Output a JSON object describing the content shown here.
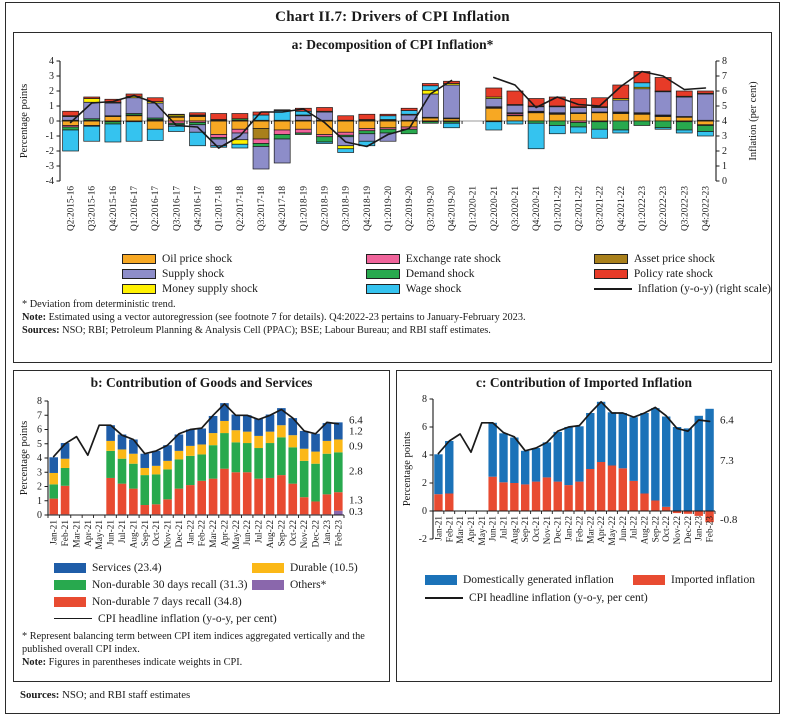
{
  "page": {
    "title": "Chart II.7: Drivers of CPI Inflation",
    "sources_label": "Sources:",
    "sources_text": " NSO; and RBI staff estimates"
  },
  "panel_a": {
    "title": "a: Decomposition of CPI Inflation*",
    "legend": [
      {
        "label": "Oil price shock",
        "color": "#F7A823"
      },
      {
        "label": "Supply shock",
        "color": "#8D8DC9"
      },
      {
        "label": "Money supply shock",
        "color": "#FFF101"
      },
      {
        "label": "Exchange rate shock",
        "color": "#F0649B"
      },
      {
        "label": "Demand shock",
        "color": "#28A94E"
      },
      {
        "label": "Wage shock",
        "color": "#35C3EF"
      },
      {
        "label": "Asset price shock",
        "color": "#A9801B"
      },
      {
        "label": "Policy rate shock",
        "color": "#E73B28"
      },
      {
        "label": "Inflation (y-o-y) (right scale)",
        "color": "#1a1a1a"
      }
    ],
    "footnotes": {
      "star": "* Deviation from deterministic trend.",
      "note_label": "Note:",
      "note_text": " Estimated using a vector autoregression (see footnote 7 for details). Q4:2022-23 pertains to January-February 2023.",
      "sources_label": "Sources:",
      "sources_text": " NSO; RBI; Petroleum Planning & Analysis Cell (PPAC); BSE; Labour Bureau; and RBI staff estimates."
    }
  },
  "panel_b": {
    "title": "b: Contribution of Goods and Services",
    "legend": [
      {
        "label": "Services (23.4)",
        "color": "#1F5DA8"
      },
      {
        "label": "Non-durable 30 days recall (31.3)",
        "color": "#28A94E"
      },
      {
        "label": "Non-durable 7 days recall (34.8)",
        "color": "#E84B31"
      },
      {
        "label": "Durable (10.5)",
        "color": "#FBB817"
      },
      {
        "label": "Others*",
        "color": "#8A67AC"
      },
      {
        "label": "CPI headline inflation (y-o-y, per cent)",
        "color": "#1a1a1a"
      }
    ],
    "footnotes": {
      "star": "* Represent balancing term between CPI item indices aggregated vertically and the published overall CPI index.",
      "note_label": "Note:",
      "note_text": " Figures in parentheses indicate weights in CPI."
    }
  },
  "panel_c": {
    "title": "c: Contribution of Imported Inflation",
    "legend": [
      {
        "label": "Domestically generated inflation",
        "color": "#1B72B8"
      },
      {
        "label": "Imported inflation",
        "color": "#E84B31"
      },
      {
        "label": "CPI headline inflation (y-o-y, per cent)",
        "color": "#1a1a1a"
      }
    ]
  },
  "chart_data": [
    {
      "id": "a",
      "type": "bar",
      "title": "a: Decomposition of CPI Inflation*",
      "ylabel": "Percentage points",
      "ylabel_right": "Inflation (per cent)",
      "ylim": [
        -4,
        4
      ],
      "yticks": [
        -4,
        -3,
        -2,
        -1,
        0,
        1,
        2,
        3,
        4
      ],
      "right_ylim": [
        0,
        8
      ],
      "right_yticks": [
        0,
        1,
        2,
        3,
        4,
        5,
        6,
        7,
        8
      ],
      "legend_position": "bottom",
      "grid": false,
      "categories": [
        "Q2:2015-16",
        "Q3:2015-16",
        "Q4:2015-16",
        "Q1:2016-17",
        "Q2:2016-17",
        "Q3:2016-17",
        "Q4:2016-17",
        "Q1:2017-18",
        "Q2:2017-18",
        "Q3:2017-18",
        "Q4:2017-18",
        "Q1:2018-19",
        "Q2:2018-19",
        "Q3:2018-19",
        "Q4:2018-19",
        "Q1:2019-20",
        "Q2:2019-20",
        "Q3:2019-20",
        "Q4:2019-20",
        "Q1:2020-21",
        "Q2:2020-21",
        "Q3:2020-21",
        "Q4:2020-21",
        "Q1:2021-22",
        "Q2:2021-22",
        "Q3:2021-22",
        "Q4:2021-22",
        "Q1:2022-23",
        "Q2:2022-23",
        "Q3:2022-23",
        "Q4:2022-23"
      ],
      "series": [
        {
          "name": "Oil price shock",
          "color": "#F7A823",
          "values": [
            -0.3,
            -0.3,
            0.3,
            0.35,
            -0.55,
            0.25,
            0.3,
            -0.9,
            -0.55,
            -0.5,
            -0.6,
            -0.55,
            -0.9,
            -0.75,
            -0.5,
            -0.45,
            -0.4,
            0.2,
            0.15,
            null,
            0.85,
            0.35,
            0.55,
            0.45,
            0.5,
            0.55,
            0.5,
            0.45,
            0.3,
            0.25,
            -0.25
          ]
        },
        {
          "name": "Asset price shock",
          "color": "#A9801B",
          "values": [
            0.05,
            0.05,
            0.05,
            0.05,
            0.05,
            0.05,
            0.05,
            0.05,
            0.05,
            -0.7,
            0,
            0.05,
            0.05,
            0.05,
            0.05,
            0.05,
            0.05,
            0.05,
            0.05,
            null,
            0.05,
            0.05,
            0.05,
            0.05,
            0.05,
            0.05,
            0.05,
            0.05,
            0.05,
            0.05,
            0.05
          ]
        },
        {
          "name": "Exchange rate shock",
          "color": "#F0649B",
          "values": [
            -0.1,
            -0.05,
            -0.05,
            -0.05,
            0.05,
            -0.15,
            -0.1,
            -0.2,
            -0.25,
            -0.3,
            -0.3,
            -0.25,
            -0.15,
            -0.2,
            -0.15,
            -0.1,
            -0.15,
            -0.05,
            -0.05,
            null,
            0.05,
            0.1,
            0.05,
            0.05,
            -0.1,
            -0.05,
            0.05,
            0.05,
            0.05,
            -0.05,
            -0.05
          ]
        },
        {
          "name": "Demand shock",
          "color": "#28A94E",
          "values": [
            -0.2,
            0.1,
            -0.15,
            0.1,
            0.1,
            -0.1,
            -0.15,
            -0.1,
            0.1,
            -0.2,
            -0.3,
            -0.1,
            -0.35,
            -0.1,
            -0.2,
            -0.25,
            -0.3,
            -0.1,
            -0.1,
            null,
            -0.05,
            0.05,
            -0.15,
            -0.3,
            -0.3,
            -0.5,
            -0.6,
            -0.3,
            -0.45,
            -0.55,
            -0.4
          ]
        },
        {
          "name": "Supply shock",
          "color": "#8D8DC9",
          "values": [
            0.25,
            1.1,
            0.85,
            1.05,
            1.0,
            -0.1,
            -0.5,
            -0.45,
            -0.45,
            -1.5,
            -1.6,
            0.3,
            0.55,
            -0.6,
            -0.5,
            -0.55,
            0.35,
            1.55,
            2.2,
            null,
            0.55,
            0.5,
            0.3,
            0.4,
            0.35,
            0.3,
            0.8,
            1.6,
            1.55,
            1.3,
            1.75
          ]
        },
        {
          "name": "Money supply shock",
          "color": "#FFF101",
          "values": [
            0.05,
            0.25,
            0.05,
            0.1,
            0.1,
            0.1,
            0.05,
            0.05,
            -0.3,
            0.05,
            0.05,
            0.05,
            0.05,
            -0.2,
            0.05,
            0.05,
            0.05,
            0.25,
            0.1,
            null,
            0.1,
            0.05,
            0.05,
            0.05,
            0.05,
            0.05,
            0.1,
            0.1,
            0.05,
            0.05,
            0.05
          ]
        },
        {
          "name": "Wage shock",
          "color": "#35C3EF",
          "values": [
            -1.4,
            -1.0,
            -1.2,
            -1.3,
            -0.75,
            -0.35,
            -0.9,
            -0.1,
            -0.25,
            0.35,
            0.65,
            0.25,
            -0.1,
            -0.25,
            -0.3,
            0.25,
            0.25,
            0.3,
            -0.3,
            null,
            -0.55,
            -0.2,
            -1.7,
            -0.55,
            -0.4,
            -0.6,
            -0.2,
            0.3,
            -0.1,
            -0.2,
            -0.3
          ]
        },
        {
          "name": "Policy rate shock",
          "color": "#E73B28",
          "values": [
            0.3,
            0.1,
            0.2,
            0.15,
            0.25,
            0.05,
            0.15,
            0.4,
            0.35,
            0.2,
            0.05,
            0.2,
            0.25,
            0.3,
            0.35,
            0.1,
            0.15,
            0.15,
            0.15,
            null,
            0.6,
            0.9,
            0.5,
            0.6,
            0.55,
            0.6,
            0.9,
            0.75,
            0.9,
            0.35,
            0.15
          ]
        }
      ],
      "line": {
        "name": "Inflation (y-o-y) (right scale)",
        "color": "#1a1a1a",
        "scale": "right",
        "values": [
          3.9,
          5.2,
          5.3,
          5.7,
          5.2,
          3.7,
          3.6,
          2.2,
          3.0,
          4.6,
          4.6,
          4.8,
          3.9,
          2.6,
          2.3,
          3.1,
          3.5,
          5.8,
          6.7,
          null,
          6.9,
          6.4,
          4.9,
          5.6,
          5.1,
          5.0,
          6.3,
          7.3,
          7.0,
          6.1,
          6.2
        ]
      },
      "annotations": []
    },
    {
      "id": "b",
      "type": "bar",
      "title": "b: Contribution of Goods and Services",
      "ylabel": "Percentage points",
      "ylim": [
        0,
        8
      ],
      "yticks": [
        0,
        1,
        2,
        3,
        4,
        5,
        6,
        7,
        8
      ],
      "legend_position": "bottom",
      "grid": false,
      "categories": [
        "Jan-21",
        "Feb-21",
        "Mar-21",
        "Apr-21",
        "May-21",
        "Jun-21",
        "Jul-21",
        "Aug-21",
        "Sep-21",
        "Oct-21",
        "Nov-21",
        "Dec-21",
        "Jan-22",
        "Feb-22",
        "Mar-22",
        "Apr-22",
        "May-22",
        "Jun-22",
        "Jul-22",
        "Aug-22",
        "Sep-22",
        "Oct-22",
        "Nov-22",
        "Dec-22",
        "Jan-23",
        "Feb-23"
      ],
      "series": [
        {
          "name": "Others*",
          "color": "#8A67AC",
          "values": [
            0.05,
            0.05,
            null,
            null,
            null,
            0.05,
            0.05,
            0.05,
            0.05,
            0.05,
            0.05,
            0.05,
            0.05,
            0.05,
            0.05,
            0.05,
            0.05,
            0.05,
            0.05,
            0.05,
            0.05,
            0.05,
            0.05,
            0.05,
            0.05,
            0.3
          ]
        },
        {
          "name": "Non-durable 7 days recall (34.8)",
          "color": "#E84B31",
          "values": [
            1.1,
            2.0,
            null,
            null,
            null,
            2.55,
            2.15,
            1.8,
            0.65,
            0.7,
            1.05,
            1.8,
            2.05,
            2.35,
            2.5,
            3.2,
            2.95,
            2.95,
            2.5,
            2.55,
            2.75,
            2.15,
            1.2,
            0.9,
            1.4,
            1.3
          ]
        },
        {
          "name": "Non-durable 30 days recall (31.3)",
          "color": "#28A94E",
          "values": [
            1.0,
            1.25,
            null,
            null,
            null,
            1.9,
            1.75,
            1.75,
            2.1,
            2.1,
            2.1,
            2.05,
            2.05,
            1.85,
            2.35,
            2.5,
            2.1,
            2.05,
            2.15,
            2.45,
            2.65,
            2.55,
            2.55,
            2.65,
            2.85,
            2.8
          ]
        },
        {
          "name": "Durable (10.5)",
          "color": "#FBB817",
          "values": [
            0.8,
            0.65,
            null,
            null,
            null,
            0.7,
            0.65,
            0.7,
            0.5,
            0.6,
            0.6,
            0.6,
            0.7,
            0.7,
            0.85,
            0.85,
            0.85,
            0.8,
            0.85,
            0.8,
            0.85,
            0.85,
            0.85,
            0.85,
            0.9,
            0.9
          ]
        },
        {
          "name": "Services (23.4)",
          "color": "#1F5DA8",
          "values": [
            1.1,
            1.1,
            null,
            null,
            null,
            1.1,
            1.05,
            1.0,
            1.0,
            1.05,
            1.1,
            1.15,
            1.15,
            1.12,
            1.2,
            1.25,
            1.1,
            1.15,
            1.2,
            1.2,
            1.2,
            1.2,
            1.25,
            1.25,
            1.25,
            1.2
          ]
        }
      ],
      "line": {
        "name": "CPI headline inflation (y-o-y, per cent)",
        "color": "#1a1a1a",
        "scale": "left",
        "values": [
          4.1,
          5.0,
          5.5,
          4.2,
          6.3,
          6.3,
          5.6,
          5.3,
          4.3,
          4.5,
          4.9,
          5.7,
          6.0,
          6.1,
          7.0,
          7.8,
          7.0,
          7.0,
          6.7,
          7.0,
          7.4,
          6.8,
          5.9,
          5.7,
          6.5,
          6.4
        ]
      },
      "annotations": [
        {
          "text": "6.4",
          "y": 6.65,
          "color": "#1a1a1a"
        },
        {
          "text": "1.2",
          "y": 5.9,
          "color": "#1F5DA8"
        },
        {
          "text": "0.9",
          "y": 4.85,
          "color": "#F59E27"
        },
        {
          "text": "2.8",
          "y": 3.1,
          "color": "#28A94E"
        },
        {
          "text": "1.3",
          "y": 1.05,
          "color": "#E84B31"
        },
        {
          "text": "0.3",
          "y": 0.25,
          "color": "#8A67AC"
        }
      ]
    },
    {
      "id": "c",
      "type": "bar",
      "title": "c: Contribution of Imported Inflation",
      "ylabel": "Percentage points",
      "ylim": [
        -2,
        8
      ],
      "yticks": [
        -2,
        0,
        2,
        4,
        6,
        8
      ],
      "legend_position": "bottom",
      "grid": false,
      "categories": [
        "Jan-21",
        "Feb-21",
        "Mar-21",
        "Apr-21",
        "May-21",
        "Jun-21",
        "Jul-21",
        "Aug-21",
        "Sep-21",
        "Oct-21",
        "Nov-21",
        "Dec-21",
        "Jan-22",
        "Feb-22",
        "Mar-22",
        "Apr-22",
        "May-22",
        "Jun-22",
        "Jul-22",
        "Aug-22",
        "Sep-22",
        "Oct-22",
        "Nov-22",
        "Dec-22",
        "Jan-23",
        "Feb-23"
      ],
      "series": [
        {
          "name": "Imported inflation",
          "color": "#E84B31",
          "values": [
            1.2,
            1.25,
            null,
            null,
            null,
            2.45,
            2.05,
            2.0,
            1.9,
            2.1,
            2.4,
            2.1,
            1.85,
            2.1,
            3.0,
            3.5,
            3.25,
            3.05,
            2.15,
            1.25,
            0.75,
            0.3,
            -0.15,
            -0.2,
            -0.35,
            -0.8
          ]
        },
        {
          "name": "Domestically generated inflation",
          "color": "#1B72B8",
          "values": [
            2.85,
            3.75,
            null,
            null,
            null,
            3.85,
            3.5,
            3.25,
            2.4,
            2.4,
            2.5,
            3.55,
            4.15,
            3.95,
            4.0,
            4.3,
            3.8,
            3.95,
            4.55,
            5.75,
            6.6,
            6.45,
            6.0,
            5.9,
            6.8,
            7.3
          ]
        }
      ],
      "line": {
        "name": "CPI headline inflation (y-o-y, per cent)",
        "color": "#1a1a1a",
        "scale": "left",
        "values": [
          4.1,
          5.0,
          5.5,
          4.2,
          6.3,
          6.3,
          5.6,
          5.3,
          4.3,
          4.5,
          4.9,
          5.7,
          6.0,
          6.1,
          7.0,
          7.8,
          7.0,
          7.0,
          6.7,
          7.0,
          7.4,
          6.8,
          5.9,
          5.7,
          6.5,
          6.4
        ]
      },
      "annotations": [
        {
          "text": "6.4",
          "y": 6.5,
          "color": "#1a1a1a"
        },
        {
          "text": "7.3",
          "y": 3.6,
          "color": "#1B72B8"
        },
        {
          "text": "-0.8",
          "y": -0.6,
          "color": "#E84B31"
        }
      ]
    }
  ]
}
